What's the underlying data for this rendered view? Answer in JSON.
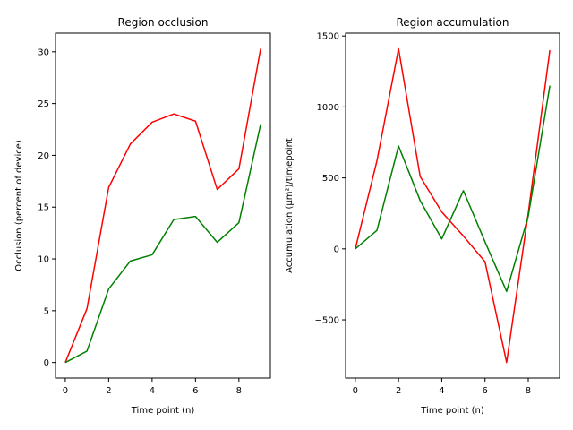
{
  "chart_data": [
    {
      "type": "line",
      "title": "Region occlusion",
      "xlabel": "Time point (n)",
      "ylabel": "Occlusion (percent of device)",
      "x": [
        0,
        1,
        2,
        3,
        4,
        5,
        6,
        7,
        8,
        9
      ],
      "xlim": [
        -0.45,
        9.45
      ],
      "ylim": [
        -1.5,
        31.8
      ],
      "xticks": [
        0,
        2,
        4,
        6,
        8
      ],
      "yticks": [
        0,
        5,
        10,
        15,
        20,
        25,
        30
      ],
      "series": [
        {
          "color": "#ff0000",
          "values": [
            0,
            5.2,
            16.9,
            21.1,
            23.2,
            24.0,
            23.3,
            16.7,
            18.7,
            30.3
          ]
        },
        {
          "color": "#008000",
          "values": [
            0,
            1.1,
            7.1,
            9.8,
            10.4,
            13.8,
            14.1,
            11.6,
            13.5,
            23.0
          ]
        }
      ]
    },
    {
      "type": "line",
      "title": "Region accumulation",
      "xlabel": "Time point (n)",
      "ylabel": "Accumulation (µm²)/timepoint",
      "x": [
        0,
        1,
        2,
        3,
        4,
        5,
        6,
        7,
        8,
        9
      ],
      "xlim": [
        -0.45,
        9.45
      ],
      "ylim": [
        -910,
        1520
      ],
      "xticks": [
        0,
        2,
        4,
        6,
        8
      ],
      "yticks": [
        -500,
        0,
        500,
        1000,
        1500
      ],
      "series": [
        {
          "color": "#ff0000",
          "values": [
            0,
            620,
            1410,
            510,
            260,
            90,
            -90,
            -800,
            250,
            1400
          ]
        },
        {
          "color": "#008000",
          "values": [
            0,
            130,
            725,
            340,
            70,
            410,
            50,
            -300,
            230,
            1150
          ]
        }
      ]
    }
  ]
}
